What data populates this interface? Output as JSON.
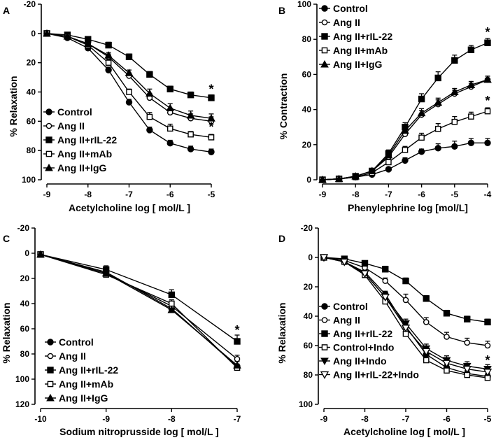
{
  "chart_data": [
    {
      "id": "A",
      "type": "line",
      "panel_label": "A",
      "xlabel": "Acetylcholine log [ mol/L ]",
      "ylabel": "% Relaxation",
      "xlim": [
        -9,
        -5
      ],
      "ylim": [
        -20,
        100
      ],
      "y_inverted": true,
      "xticks": [
        -9,
        -8,
        -7,
        -6,
        -5
      ],
      "yticks": [
        -20,
        0,
        20,
        40,
        60,
        80,
        100
      ],
      "x": [
        -9,
        -8.5,
        -8,
        -7.5,
        -7,
        -6.5,
        -6,
        -5.5,
        -5
      ],
      "legend_position": "lower-left",
      "series": [
        {
          "name": "Control",
          "marker": "filled-circle",
          "values": [
            0,
            3,
            10,
            25,
            47,
            66,
            75,
            79,
            81
          ],
          "errors": [
            0,
            1,
            2,
            2,
            2,
            2,
            2,
            2,
            2
          ]
        },
        {
          "name": "Ang II",
          "marker": "open-circle",
          "values": [
            0,
            2,
            7,
            16,
            29,
            44,
            54,
            58,
            60
          ],
          "errors": [
            0,
            1,
            2,
            2,
            2,
            3,
            3,
            3,
            3
          ]
        },
        {
          "name": "Ang II+rIL-22",
          "marker": "filled-square",
          "values": [
            0,
            1,
            4,
            8,
            16,
            28,
            38,
            42,
            44
          ],
          "errors": [
            0,
            1,
            1,
            2,
            2,
            2,
            2,
            2,
            2
          ]
        },
        {
          "name": "Ang II+mAb",
          "marker": "open-square",
          "values": [
            0,
            2,
            8,
            20,
            40,
            57,
            65,
            69,
            71
          ],
          "errors": [
            0,
            1,
            2,
            2,
            2,
            3,
            3,
            2,
            2
          ]
        },
        {
          "name": "Ang II+IgG",
          "marker": "filled-triangle",
          "values": [
            0,
            2,
            7,
            15,
            27,
            41,
            51,
            56,
            58
          ],
          "errors": [
            0,
            1,
            2,
            2,
            2,
            3,
            3,
            3,
            3
          ]
        }
      ],
      "annotations": [
        {
          "text": "*",
          "x": -5,
          "y": 38
        },
        {
          "text": "*",
          "x": -5,
          "y": 64
        }
      ]
    },
    {
      "id": "B",
      "type": "line",
      "panel_label": "B",
      "xlabel": "Phenylephrine log [mol/L]",
      "ylabel": "% Contraction",
      "xlim": [
        -9,
        -4
      ],
      "ylim": [
        0,
        100
      ],
      "y_inverted": false,
      "xticks": [
        -9,
        -8,
        -7,
        -6,
        -5,
        -4
      ],
      "yticks": [
        0,
        20,
        40,
        60,
        80,
        100
      ],
      "x": [
        -9,
        -8.5,
        -8,
        -7.5,
        -7,
        -6.5,
        -6,
        -5.5,
        -5,
        -4.5,
        -4
      ],
      "legend_position": "top-left",
      "series": [
        {
          "name": "Control",
          "marker": "filled-circle",
          "values": [
            0,
            0.5,
            1.5,
            3,
            6,
            11,
            16,
            18,
            19,
            21,
            21
          ],
          "errors": [
            0,
            0.5,
            0.5,
            1,
            1,
            1.5,
            1.5,
            2.5,
            3,
            2.5,
            2.5
          ]
        },
        {
          "name": "Ang II",
          "marker": "open-circle",
          "values": [
            0,
            0.5,
            2,
            5,
            13,
            26,
            37,
            43,
            49,
            53,
            57
          ],
          "errors": [
            0,
            0.5,
            0.5,
            1,
            2,
            2.5,
            2.5,
            2.5,
            2,
            2,
            2
          ]
        },
        {
          "name": "Ang II+rIL-22",
          "marker": "filled-square",
          "values": [
            0,
            0.5,
            2,
            5,
            15,
            30,
            46,
            58,
            68,
            74,
            78
          ],
          "errors": [
            0,
            0.5,
            0.5,
            1,
            2,
            2.5,
            3,
            3.5,
            3,
            2.5,
            2.5
          ]
        },
        {
          "name": "Ang II+mAb",
          "marker": "open-square",
          "values": [
            0,
            0.5,
            1.5,
            4,
            10,
            17,
            24,
            29,
            33,
            36,
            39
          ],
          "errors": [
            0,
            0.5,
            0.5,
            1,
            1.5,
            2,
            2.5,
            3,
            3,
            2.5,
            2
          ]
        },
        {
          "name": "Ang II+IgG",
          "marker": "filled-triangle",
          "values": [
            0,
            0.5,
            2,
            5,
            14,
            28,
            38,
            44,
            50,
            54,
            57
          ],
          "errors": [
            0,
            0.5,
            0.5,
            1,
            2,
            2.5,
            2.5,
            2.5,
            2,
            2,
            2
          ]
        }
      ],
      "annotations": [
        {
          "text": "*",
          "x": -4,
          "y": 84
        },
        {
          "text": "*",
          "x": -4,
          "y": 45
        }
      ]
    },
    {
      "id": "C",
      "type": "line",
      "panel_label": "C",
      "xlabel": "Sodium nitroprusside log [ mol/L ]",
      "ylabel": "% Relaxation",
      "xlim": [
        -10,
        -7
      ],
      "ylim": [
        -20,
        120
      ],
      "y_inverted": true,
      "xticks": [
        -10,
        -9,
        -8,
        -7
      ],
      "yticks": [
        -20,
        0,
        20,
        40,
        60,
        80,
        100,
        120
      ],
      "x": [
        -10,
        -9,
        -8,
        -7
      ],
      "legend_position": "lower-left",
      "series": [
        {
          "name": "Control",
          "marker": "filled-circle",
          "values": [
            1,
            15,
            44,
            90
          ],
          "errors": [
            0,
            3,
            3,
            2
          ]
        },
        {
          "name": "Ang II",
          "marker": "open-circle",
          "values": [
            1,
            16,
            42,
            84
          ],
          "errors": [
            0,
            3,
            3,
            3
          ]
        },
        {
          "name": "Ang II+rIL-22",
          "marker": "filled-square",
          "values": [
            1,
            13,
            33,
            70
          ],
          "errors": [
            0,
            3,
            4,
            5
          ]
        },
        {
          "name": "Ang II+mAb",
          "marker": "open-square",
          "values": [
            1,
            17,
            40,
            91
          ],
          "errors": [
            0,
            3,
            3,
            2
          ]
        },
        {
          "name": "Ang II+IgG",
          "marker": "filled-triangle",
          "values": [
            1,
            16,
            45,
            89
          ],
          "errors": [
            0,
            3,
            3,
            3
          ]
        }
      ],
      "annotations": [
        {
          "text": "*",
          "x": -7,
          "y": 61
        }
      ]
    },
    {
      "id": "D",
      "type": "line",
      "panel_label": "D",
      "xlabel": "Acetylcholine log [ mol/L ]",
      "ylabel": "% Relaxation",
      "xlim": [
        -9,
        -5
      ],
      "ylim": [
        -20,
        100
      ],
      "y_inverted": true,
      "xticks": [
        -9,
        -8,
        -7,
        -6,
        -5
      ],
      "yticks": [
        -20,
        0,
        20,
        40,
        60,
        80,
        100
      ],
      "x": [
        -9,
        -8.5,
        -8,
        -7.5,
        -7,
        -6.5,
        -6,
        -5.5,
        -5
      ],
      "legend_position": "lower-left",
      "series": [
        {
          "name": "Control",
          "marker": "filled-circle",
          "values": [
            0,
            3,
            10,
            25,
            47,
            66,
            75,
            79,
            81
          ],
          "errors": [
            0,
            1,
            2,
            2,
            2,
            2,
            2,
            2,
            2
          ]
        },
        {
          "name": "Ang II",
          "marker": "open-circle",
          "values": [
            0,
            2,
            7,
            16,
            29,
            44,
            54,
            58,
            60
          ],
          "errors": [
            0,
            1,
            2,
            2,
            4,
            3,
            3,
            3,
            3
          ]
        },
        {
          "name": "Ang II+rIL-22",
          "marker": "filled-square",
          "values": [
            0,
            1,
            4,
            8,
            16,
            28,
            38,
            42,
            44
          ],
          "errors": [
            0,
            1,
            1,
            2,
            2,
            2,
            2,
            2,
            2
          ]
        },
        {
          "name": "Control+Indo",
          "marker": "open-square",
          "values": [
            0,
            3,
            12,
            30,
            52,
            70,
            77,
            80,
            82
          ],
          "errors": [
            0,
            1,
            2,
            2,
            3,
            2,
            2,
            2,
            2
          ]
        },
        {
          "name": "Ang II+Indo",
          "marker": "filled-triangle-down",
          "values": [
            0,
            3,
            11,
            27,
            45,
            62,
            70,
            74,
            76
          ],
          "errors": [
            0,
            1,
            2,
            2,
            3,
            3,
            3,
            3,
            3
          ]
        },
        {
          "name": "Ang II+rIL-22+Indo",
          "marker": "open-triangle-down",
          "values": [
            0,
            3,
            11,
            27,
            48,
            64,
            72,
            76,
            78
          ],
          "errors": [
            0,
            1,
            2,
            2,
            3,
            3,
            3,
            3,
            3
          ]
        }
      ],
      "annotations": [
        {
          "text": "*",
          "x": -5,
          "y": 70
        }
      ]
    }
  ]
}
